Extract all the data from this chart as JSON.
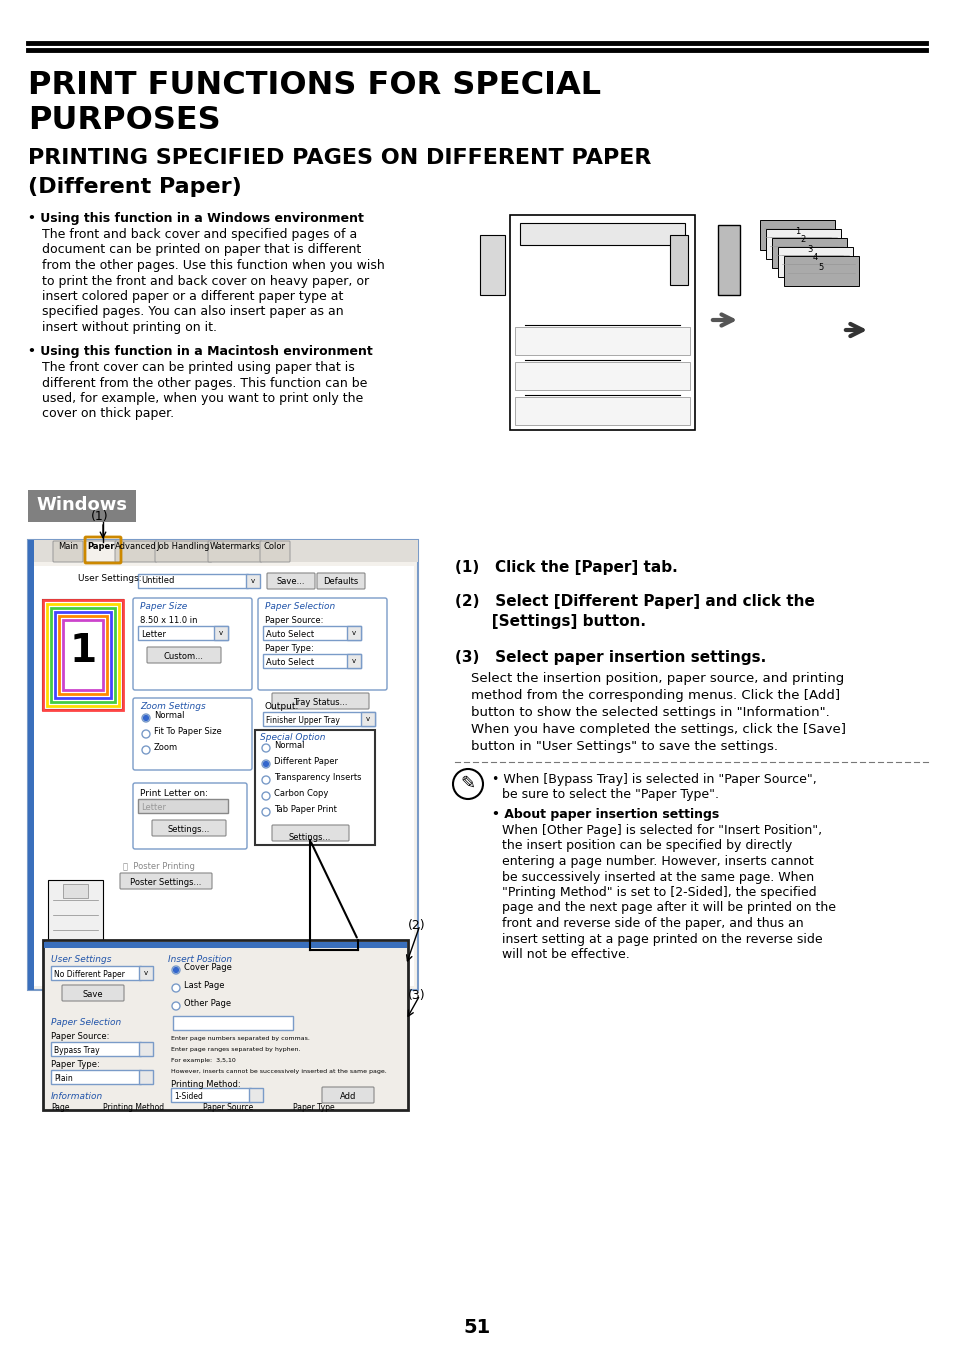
{
  "bg_color": "#ffffff",
  "title1_line1": "PRINT FUNCTIONS FOR SPECIAL",
  "title1_line2": "PURPOSES",
  "title2_line1": "PRINTING SPECIFIED PAGES ON DIFFERENT PAPER",
  "title2_line2": "(Different Paper)",
  "section_windows": "Windows",
  "bullet1_bold": "Using this function in a Windows environment",
  "bullet2_bold": "Using this function in a Macintosh environment",
  "step1": "(1)   Click the [Paper] tab.",
  "step2_line1": "(2)   Select [Different Paper] and click the",
  "step2_line2": "       [Settings] button.",
  "step3_bold": "(3)   Select paper insertion settings.",
  "step3_text_lines": [
    "Select the insertion position, paper source, and printing",
    "method from the corresponding menus. Click the [Add]",
    "button to show the selected settings in \"Information\".",
    "When you have completed the settings, click the [Save]",
    "button in \"User Settings\" to save the settings."
  ],
  "note1_line1": "When [Bypass Tray] is selected in \"Paper Source\",",
  "note1_line2": "be sure to select the \"Paper Type\".",
  "note2_bold": "About paper insertion settings",
  "note2_text_lines": [
    "When [Other Page] is selected for \"Insert Position\",",
    "the insert position can be specified by directly",
    "entering a page number. However, inserts cannot",
    "be successively inserted at the same page. When",
    "\"Printing Method\" is set to [2-Sided], the specified",
    "page and the next page after it will be printed on the",
    "front and reverse side of the paper, and thus an",
    "insert setting at a page printed on the reverse side",
    "will not be effective."
  ],
  "page_number": "51",
  "windows_label_bg": "#808080",
  "windows_label_fg": "#ffffff",
  "b1_lines": [
    "The front and back cover and specified pages of a",
    "document can be printed on paper that is different",
    "from the other pages. Use this function when you wish",
    "to print the front and back cover on heavy paper, or",
    "insert colored paper or a different paper type at",
    "specified pages. You can also insert paper as an",
    "insert without printing on it."
  ],
  "b2_lines": [
    "The front cover can be printed using paper that is",
    "different from the other pages. This function can be",
    "used, for example, when you want to print only the",
    "cover on thick paper."
  ]
}
